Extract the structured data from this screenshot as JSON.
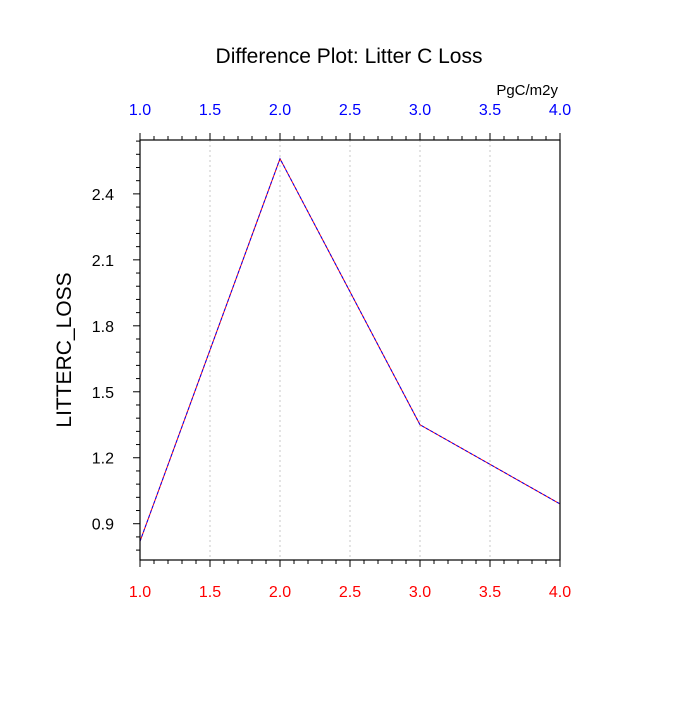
{
  "chart_data": {
    "type": "line",
    "title": "Difference Plot: Litter C Loss",
    "units_label": "PgC/m2y",
    "ylabel": "LITTERC_LOSS",
    "xlabel": "",
    "xlim": [
      1.0,
      4.0
    ],
    "ylim": [
      0.735,
      2.645
    ],
    "x_ticks": [
      1.0,
      1.5,
      2.0,
      2.5,
      3.0,
      3.5,
      4.0
    ],
    "x_tick_labels": [
      "1.0",
      "1.5",
      "2.0",
      "2.5",
      "3.0",
      "3.5",
      "4.0"
    ],
    "x_minor_step": 0.1,
    "y_ticks": [
      0.9,
      1.2,
      1.5,
      1.8,
      2.1,
      2.4
    ],
    "y_tick_labels": [
      "0.9",
      "1.2",
      "1.5",
      "1.8",
      "2.1",
      "2.4"
    ],
    "y_minor_step": 0.06,
    "grid": "vertical-dashed",
    "top_axis_color": "#0000ff",
    "bottom_axis_color": "#ff0000",
    "series": [
      {
        "color": "#ff0000",
        "x": [
          1.0,
          2.0,
          3.0,
          4.0
        ],
        "values": [
          0.82,
          2.56,
          1.35,
          0.99
        ]
      },
      {
        "color": "#0000ff",
        "x": [
          1.0,
          2.0,
          3.0,
          4.0
        ],
        "values": [
          0.82,
          2.56,
          1.35,
          0.99
        ],
        "dashed": true
      }
    ]
  }
}
